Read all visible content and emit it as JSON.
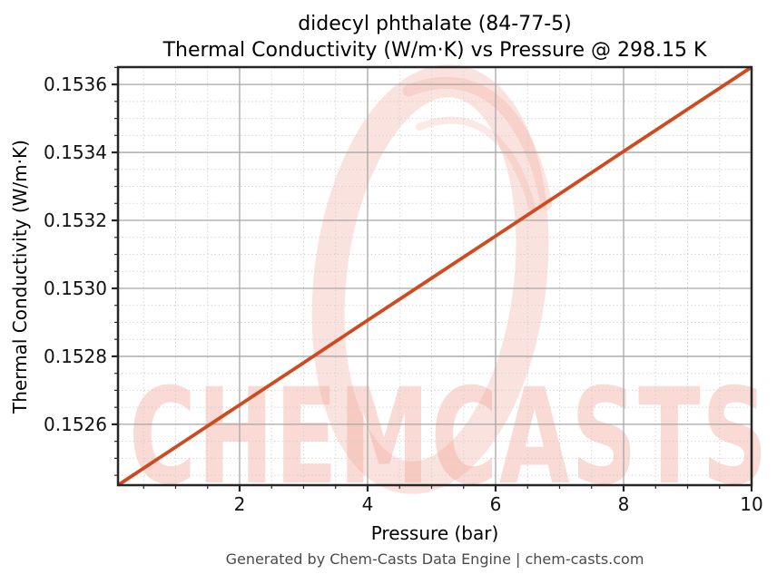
{
  "header": {
    "title_line1": "didecyl phthalate (84-77-5)",
    "title_line2": "Thermal Conductivity (W/m·K) vs Pressure @ 298.15 K"
  },
  "footer": {
    "credit": "Generated by Chem-Casts Data Engine | chem-casts.com"
  },
  "watermark": {
    "text": "CHEMCASTS",
    "color": "#f0a294"
  },
  "colors": {
    "line": "#cf4a1e",
    "grid_major": "#a6a6a6",
    "grid_minor": "#cfcfcf",
    "spine": "#262626",
    "tick_label": "#111111",
    "footer_text": "#4a4a4a"
  },
  "chart_data": {
    "type": "line",
    "title": "didecyl phthalate (84-77-5)",
    "subtitle": "Thermal Conductivity (W/m·K) vs Pressure @ 298.15 K",
    "xlabel": "Pressure (bar)",
    "ylabel": "Thermal Conductivity (W/m·K)",
    "temperature_K": "298.15",
    "x_range": [
      0.1,
      10
    ],
    "y_range": [
      0.152421,
      0.153651
    ],
    "x_major_ticks": [
      2,
      4,
      6,
      8,
      10
    ],
    "x_tick_labels": [
      "2",
      "4",
      "6",
      "8",
      "10"
    ],
    "x_minor_step": 0.5,
    "y_major_ticks": [
      0.1526,
      0.1528,
      0.153,
      0.1532,
      0.1534,
      0.1536
    ],
    "y_tick_labels": [
      "0.1526",
      "0.1528",
      "0.1530",
      "0.1532",
      "0.1534",
      "0.1536"
    ],
    "y_minor_step": 5e-05,
    "grid": true,
    "legend": false,
    "line_color": "#cf4a1e",
    "series": [
      {
        "name": "Thermal Conductivity",
        "x": [
          0.1,
          1,
          2,
          3,
          4,
          5,
          6,
          7,
          8,
          9,
          10
        ],
        "y": [
          0.152421,
          0.152533,
          0.152657,
          0.152781,
          0.152906,
          0.15303,
          0.153154,
          0.153278,
          0.153403,
          0.153527,
          0.153651
        ]
      }
    ]
  }
}
